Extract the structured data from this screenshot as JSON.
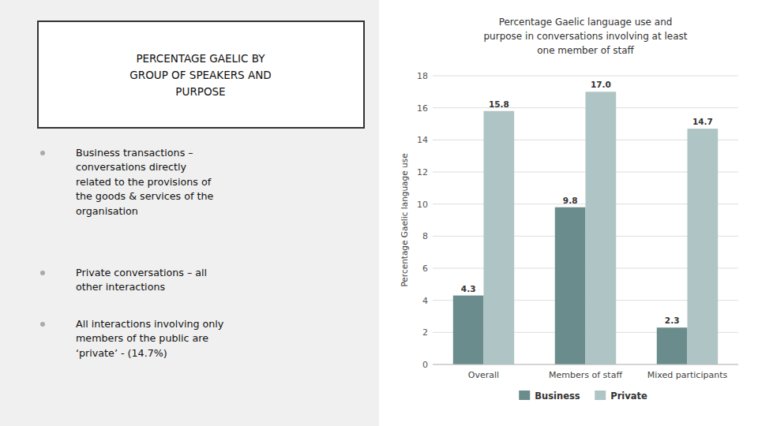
{
  "chart_data": {
    "type": "bar",
    "title": "Percentage Gaelic language use and\npurpose in conversations involving at least\none member of staff",
    "y_label": "Percentage Gaelic language use",
    "categories": [
      "Overall",
      "Members of staff",
      "Mixed participants"
    ],
    "series": [
      {
        "name": "Business",
        "color": "#6b8c8c",
        "values": [
          4.3,
          9.8,
          2.3
        ]
      },
      {
        "name": "Private",
        "color": "#afc4c4",
        "values": [
          15.8,
          17.0,
          14.7
        ],
        "value_labels": [
          "15.8",
          "17.0",
          "14.7"
        ]
      }
    ],
    "ylim": [
      0,
      18
    ],
    "yticks": [
      0,
      2,
      4,
      6,
      8,
      10,
      12,
      14,
      16,
      18
    ],
    "grid": true,
    "legend": "bottom",
    "data_labels": true,
    "annotations": [
      "PERCENTAGE GAELIC BY\nGROUP OF SPEAKERS AND\nPURPOSE",
      "Business transactions –\nconversations directly\nrelated to the provisions of\nthe goods & services of the\norganisation",
      "Private conversations – all\nother interactions",
      "All interactions involving only\nmembers of the public are\n‘private’  - (14.7%)"
    ]
  }
}
